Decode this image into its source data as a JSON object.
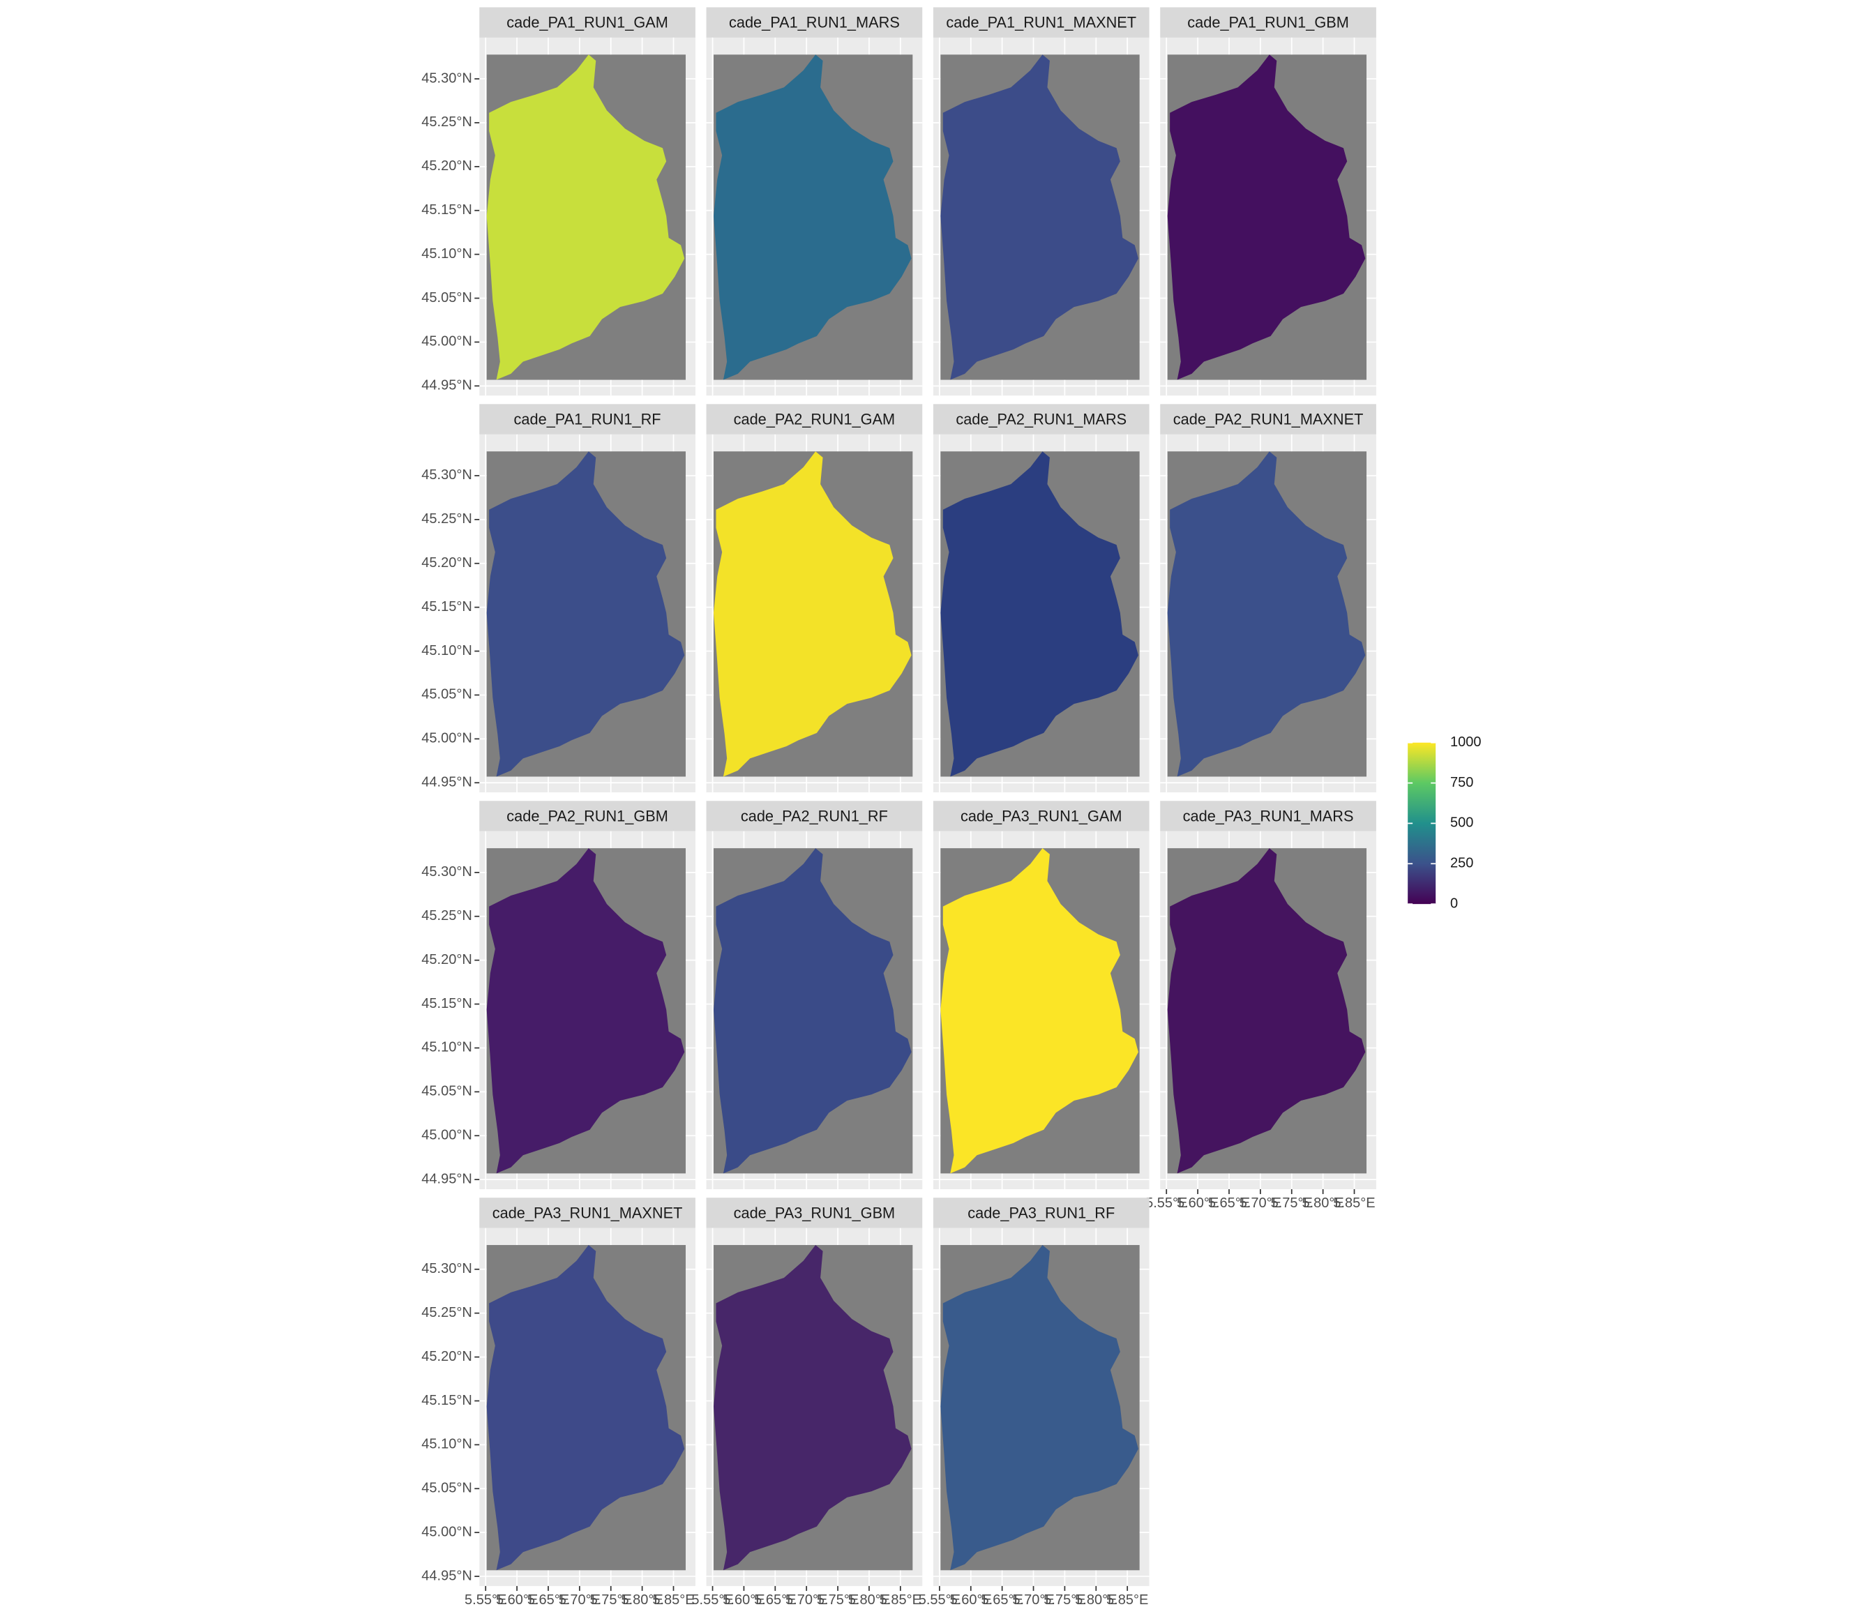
{
  "chart_data": {
    "type": "facet_map",
    "panels": [
      {
        "title": "cade_PA1_RUN1_GAM",
        "color": "#c8df3c"
      },
      {
        "title": "cade_PA1_RUN1_MARS",
        "color": "#2b6c8e"
      },
      {
        "title": "cade_PA1_RUN1_MAXNET",
        "color": "#3c4c89"
      },
      {
        "title": "cade_PA1_RUN1_GBM",
        "color": "#44105f"
      },
      {
        "title": "cade_PA1_RUN1_RF",
        "color": "#3c4e8a"
      },
      {
        "title": "cade_PA2_RUN1_GAM",
        "color": "#f3e228"
      },
      {
        "title": "cade_PA2_RUN1_MARS",
        "color": "#2b3e80"
      },
      {
        "title": "cade_PA2_RUN1_MAXNET",
        "color": "#3b508b"
      },
      {
        "title": "cade_PA2_RUN1_GBM",
        "color": "#461c68"
      },
      {
        "title": "cade_PA2_RUN1_RF",
        "color": "#3a4b88"
      },
      {
        "title": "cade_PA3_RUN1_GAM",
        "color": "#fbe526"
      },
      {
        "title": "cade_PA3_RUN1_MARS",
        "color": "#45145f"
      },
      {
        "title": "cade_PA3_RUN1_MAXNET",
        "color": "#3e4a89"
      },
      {
        "title": "cade_PA3_RUN1_GBM",
        "color": "#472669"
      },
      {
        "title": "cade_PA3_RUN1_RF",
        "color": "#395b8c"
      }
    ],
    "xlim": [
      5.54,
      5.885
    ],
    "ylim": [
      44.939,
      45.347
    ],
    "xticks": [
      {
        "value": 5.55,
        "label": "5.55°E"
      },
      {
        "value": 5.6,
        "label": "5.60°E"
      },
      {
        "value": 5.65,
        "label": "5.65°E"
      },
      {
        "value": 5.7,
        "label": "5.70°E"
      },
      {
        "value": 5.75,
        "label": "5.75°E"
      },
      {
        "value": 5.8,
        "label": "5.80°E"
      },
      {
        "value": 5.85,
        "label": "5.85°E"
      }
    ],
    "yticks": [
      {
        "value": 44.95,
        "label": "44.95°N"
      },
      {
        "value": 45.0,
        "label": "45.00°N"
      },
      {
        "value": 45.05,
        "label": "45.05°N"
      },
      {
        "value": 45.1,
        "label": "45.10°N"
      },
      {
        "value": 45.15,
        "label": "45.15°N"
      },
      {
        "value": 45.2,
        "label": "45.20°N"
      },
      {
        "value": 45.25,
        "label": "45.25°N"
      },
      {
        "value": 45.3,
        "label": "45.30°N"
      }
    ],
    "legend": {
      "lim": [
        0,
        1000
      ],
      "ticks": [
        0,
        250,
        500,
        750,
        1000
      ],
      "colors": [
        "#440154",
        "#3b528b",
        "#21908c",
        "#5dc963",
        "#fde725"
      ]
    }
  }
}
